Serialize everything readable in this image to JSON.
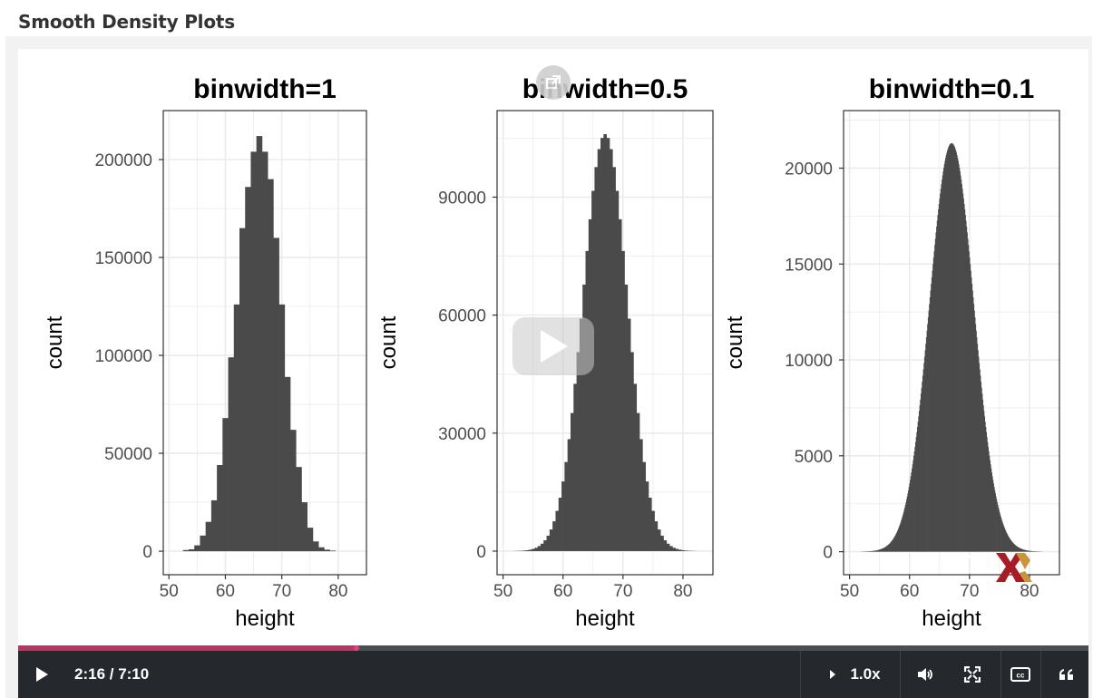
{
  "page": {
    "title": "Smooth Density Plots"
  },
  "player": {
    "current_time": "2:16",
    "duration": "7:10",
    "time_display": "2:16 / 7:10",
    "progress": 0.316,
    "speed_label": "1.0x",
    "accent_color": "#b03a60"
  },
  "icons": {
    "play": "play-icon",
    "speed": "speed-caret-icon",
    "volume": "volume-icon",
    "fullscreen": "fullscreen-icon",
    "captions": "closed-captions-icon",
    "transcript": "transcript-quote-icon",
    "expand": "popout-icon",
    "overlay_play": "play-overlay-icon",
    "logo": "edx-logo"
  },
  "chart_data": [
    {
      "type": "bar",
      "title": "binwidth=1",
      "xlabel": "height",
      "ylabel": "count",
      "xlim": [
        49,
        85
      ],
      "ylim": [
        -12000,
        225000
      ],
      "xticks": [
        50,
        60,
        70,
        80
      ],
      "yticks": [
        0,
        50000,
        100000,
        150000,
        200000
      ],
      "ytick_labels": [
        "0",
        "50000",
        "100000",
        "150000",
        "200000"
      ],
      "bin_width": 1,
      "bins": [
        {
          "x": 53,
          "y": 600
        },
        {
          "x": 54,
          "y": 1000
        },
        {
          "x": 55,
          "y": 3000
        },
        {
          "x": 56,
          "y": 8000
        },
        {
          "x": 57,
          "y": 15000
        },
        {
          "x": 58,
          "y": 26000
        },
        {
          "x": 59,
          "y": 44000
        },
        {
          "x": 60,
          "y": 68000
        },
        {
          "x": 61,
          "y": 99000
        },
        {
          "x": 62,
          "y": 126000
        },
        {
          "x": 63,
          "y": 165000
        },
        {
          "x": 64,
          "y": 186000
        },
        {
          "x": 65,
          "y": 204000
        },
        {
          "x": 66,
          "y": 212000
        },
        {
          "x": 67,
          "y": 204000
        },
        {
          "x": 68,
          "y": 190000
        },
        {
          "x": 69,
          "y": 160000
        },
        {
          "x": 70,
          "y": 126000
        },
        {
          "x": 71,
          "y": 89000
        },
        {
          "x": 72,
          "y": 62000
        },
        {
          "x": 73,
          "y": 43000
        },
        {
          "x": 74,
          "y": 25000
        },
        {
          "x": 75,
          "y": 12000
        },
        {
          "x": 76,
          "y": 5000
        },
        {
          "x": 77,
          "y": 2000
        },
        {
          "x": 78,
          "y": 800
        },
        {
          "x": 79,
          "y": 300
        }
      ]
    },
    {
      "type": "bar",
      "title": "binwidth=0.5",
      "xlabel": "height",
      "ylabel": "count",
      "xlim": [
        49,
        85
      ],
      "ylim": [
        -6000,
        112000
      ],
      "xticks": [
        50,
        60,
        70,
        80
      ],
      "yticks": [
        0,
        30000,
        60000,
        90000
      ],
      "ytick_labels": [
        "0",
        "30000",
        "60000",
        "90000"
      ],
      "bin_width": 0.5,
      "dist": {
        "mean": 67,
        "sd": 3.7,
        "peak": 106000,
        "from": 52,
        "to": 82
      }
    },
    {
      "type": "bar",
      "title": "binwidth=0.1",
      "xlabel": "height",
      "ylabel": "count",
      "xlim": [
        49,
        85
      ],
      "ylim": [
        -1200,
        23000
      ],
      "xticks": [
        50,
        60,
        70,
        80
      ],
      "yticks": [
        0,
        5000,
        10000,
        15000,
        20000
      ],
      "ytick_labels": [
        "0",
        "5000",
        "10000",
        "15000",
        "20000"
      ],
      "bin_width": 0.1,
      "dist": {
        "mean": 67,
        "sd": 3.7,
        "peak": 21300,
        "from": 52,
        "to": 82
      }
    }
  ]
}
